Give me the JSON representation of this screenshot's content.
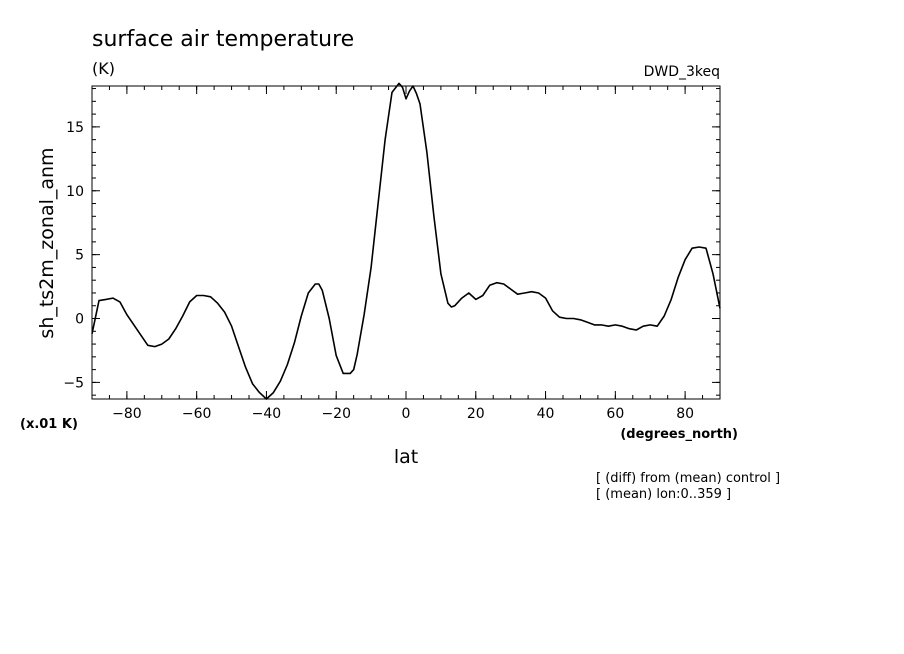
{
  "chart_data": {
    "type": "line",
    "title": "surface air temperature",
    "units": "(K)",
    "model_label": "DWD_3keq",
    "ylabel": "sh_ts2m_zonal_anm",
    "xlabel": "lat",
    "x_units": "(degrees_north)",
    "y_scale_note": "(x.01 K)",
    "notes": [
      "[ (diff) from (mean) control ]",
      "[ (mean) lon:0..359 ]"
    ],
    "xlim": [
      -90,
      90
    ],
    "ylim": [
      -6.3,
      18.2
    ],
    "xticks": [
      -80,
      -60,
      -40,
      -20,
      0,
      20,
      40,
      60,
      80
    ],
    "yticks": [
      -5,
      0,
      5,
      10,
      15
    ],
    "grid": false,
    "series": [
      {
        "x": [
          -90,
          -88,
          -86,
          -84,
          -82,
          -80,
          -78,
          -76,
          -74,
          -72,
          -70,
          -68,
          -66,
          -64,
          -62,
          -60,
          -58,
          -56,
          -54,
          -52,
          -50,
          -48,
          -46,
          -44,
          -42,
          -40,
          -38,
          -36,
          -34,
          -32,
          -30,
          -28,
          -26,
          -25,
          -24,
          -22,
          -20,
          -18,
          -16,
          -15,
          -14,
          -12,
          -10,
          -8,
          -6,
          -4,
          -2,
          -1,
          0,
          1,
          2,
          3,
          4,
          6,
          8,
          10,
          12,
          13,
          14,
          16,
          18,
          20,
          22,
          24,
          26,
          28,
          30,
          32,
          34,
          36,
          38,
          40,
          42,
          44,
          46,
          48,
          50,
          52,
          54,
          56,
          58,
          60,
          62,
          64,
          66,
          68,
          70,
          72,
          74,
          76,
          78,
          80,
          82,
          84,
          86,
          88,
          90
        ],
        "y": [
          -1.2,
          1.4,
          1.5,
          1.6,
          1.3,
          0.3,
          -0.5,
          -1.3,
          -2.1,
          -2.2,
          -2.0,
          -1.6,
          -0.8,
          0.2,
          1.3,
          1.8,
          1.8,
          1.7,
          1.2,
          0.5,
          -0.6,
          -2.2,
          -3.8,
          -5.1,
          -5.8,
          -6.3,
          -5.8,
          -4.9,
          -3.6,
          -1.9,
          0.2,
          2.0,
          2.7,
          2.7,
          2.2,
          0.0,
          -2.9,
          -4.3,
          -4.3,
          -4.0,
          -2.8,
          0.3,
          4.0,
          9.0,
          14.0,
          17.7,
          18.4,
          18.1,
          17.2,
          17.8,
          18.2,
          17.6,
          16.8,
          13.0,
          8.0,
          3.5,
          1.2,
          0.9,
          1.0,
          1.6,
          2.0,
          1.5,
          1.8,
          2.6,
          2.8,
          2.7,
          2.3,
          1.9,
          2.0,
          2.1,
          2.0,
          1.6,
          0.6,
          0.1,
          0.0,
          0.0,
          -0.1,
          -0.3,
          -0.5,
          -0.5,
          -0.6,
          -0.5,
          -0.6,
          -0.8,
          -0.9,
          -0.6,
          -0.5,
          -0.6,
          0.2,
          1.5,
          3.2,
          4.6,
          5.5,
          5.6,
          5.5,
          3.5,
          0.8
        ]
      }
    ]
  }
}
